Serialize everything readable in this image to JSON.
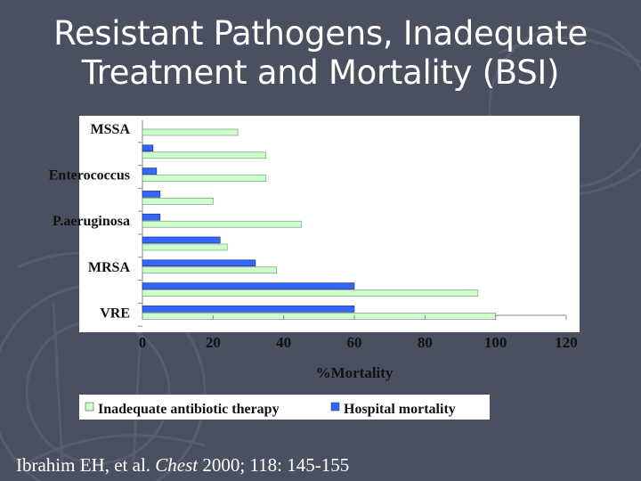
{
  "slide": {
    "title_line1": "Resistant Pathogens, Inadequate",
    "title_line2": "Treatment and Mortality (BSI)",
    "citation_authors": "Ibrahim EH, et al.",
    "citation_journal": "Chest",
    "citation_details": "2000; 118: 145-155",
    "background_color": "#4b5061"
  },
  "chart_data": {
    "type": "bar",
    "orientation": "horizontal",
    "xlabel": "%Mortality",
    "xlim": [
      0,
      120
    ],
    "xticks": [
      0,
      20,
      40,
      60,
      80,
      100,
      120
    ],
    "categories_top_to_bottom": [
      "MSSA",
      "",
      "Enterococcus",
      "",
      "P.aeruginosa",
      "",
      "MRSA",
      "",
      "VRE"
    ],
    "series": [
      {
        "name": "Inadequate antibiotic therapy",
        "color": "#ccffcc",
        "values": [
          27,
          35,
          35,
          20,
          45,
          24,
          38,
          95,
          100
        ]
      },
      {
        "name": "Hospital mortality",
        "color": "#3366ff",
        "values": [
          0,
          3,
          4,
          5,
          5,
          22,
          32,
          60,
          60
        ]
      }
    ],
    "legend_position": "bottom",
    "grid": false
  }
}
